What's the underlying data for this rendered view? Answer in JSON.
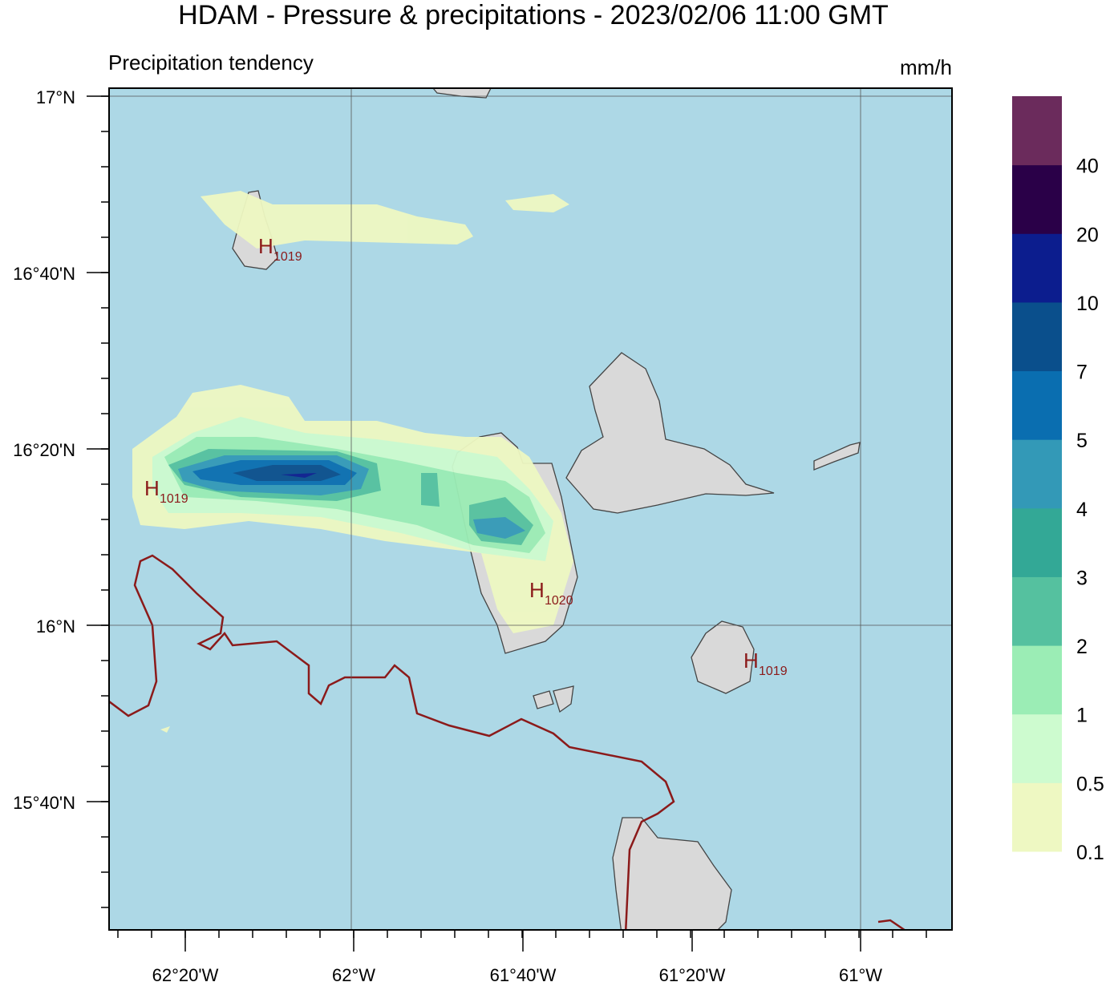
{
  "title": "HDAM - Pressure & precipitations  -  2023/02/06  11:00 GMT",
  "subtitle": "Precipitation tendency",
  "unit": "mm/h",
  "lat_labels": [
    "17°N",
    "16°40'N",
    "16°20'N",
    "16°N",
    "15°40'N"
  ],
  "lon_labels": [
    "62°20'W",
    "62°W",
    "61°40'W",
    "61°20'W",
    "61°W"
  ],
  "colorbar": {
    "labels": [
      "0.1",
      "0.5",
      "1",
      "2",
      "3",
      "4",
      "5",
      "7",
      "10",
      "20",
      "40"
    ],
    "colors": [
      "#eef8c2",
      "#cdfbcf",
      "#9bedb5",
      "#55c19f",
      "#33a896",
      "#3399b7",
      "#0a6eb0",
      "#0a4f8c",
      "#0c1d8e",
      "#2a0048",
      "#6b2b5c"
    ]
  },
  "pressure_centers": [
    {
      "letter": "H",
      "value": "1019"
    },
    {
      "letter": "H",
      "value": "1019"
    },
    {
      "letter": "H",
      "value": "1020"
    },
    {
      "letter": "H",
      "value": "1019"
    }
  ]
}
